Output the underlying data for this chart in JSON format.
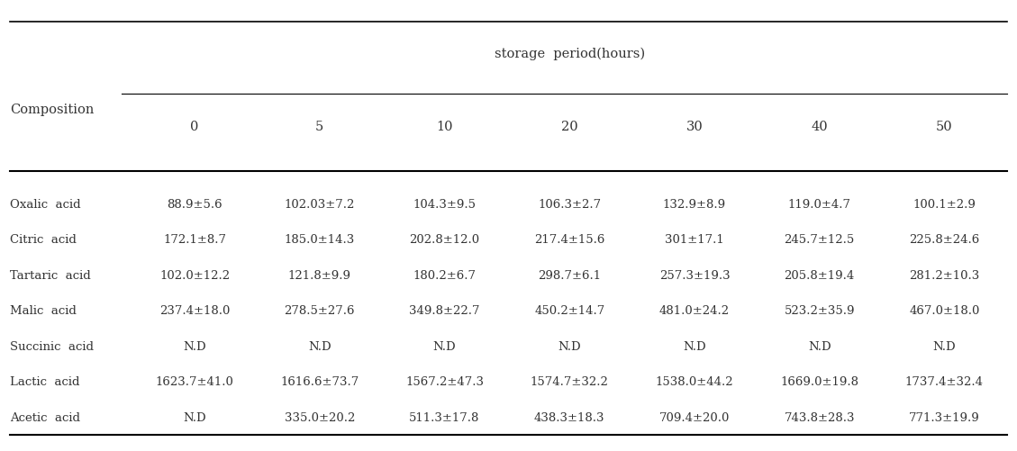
{
  "header_top": "storage  period(hours)",
  "col_header": "Composition",
  "columns": [
    "0",
    "5",
    "10",
    "20",
    "30",
    "40",
    "50"
  ],
  "rows": [
    {
      "name": "Oxalic  acid",
      "values": [
        "88.9±5.6",
        "102.03±7.2",
        "104.3±9.5",
        "106.3±2.7",
        "132.9±8.9",
        "119.0±4.7",
        "100.1±2.9"
      ]
    },
    {
      "name": "Citric  acid",
      "values": [
        "172.1±8.7",
        "185.0±14.3",
        "202.8±12.0",
        "217.4±15.6",
        "301±17.1",
        "245.7±12.5",
        "225.8±24.6"
      ]
    },
    {
      "name": "Tartaric  acid",
      "values": [
        "102.0±12.2",
        "121.8±9.9",
        "180.2±6.7",
        "298.7±6.1",
        "257.3±19.3",
        "205.8±19.4",
        "281.2±10.3"
      ]
    },
    {
      "name": "Malic  acid",
      "values": [
        "237.4±18.0",
        "278.5±27.6",
        "349.8±22.7",
        "450.2±14.7",
        "481.0±24.2",
        "523.2±35.9",
        "467.0±18.0"
      ]
    },
    {
      "name": "Succinic  acid",
      "values": [
        "N.D",
        "N.D",
        "N.D",
        "N.D",
        "N.D",
        "N.D",
        "N.D"
      ]
    },
    {
      "name": "Lactic  acid",
      "values": [
        "1623.7±41.0",
        "1616.6±73.7",
        "1567.2±47.3",
        "1574.7±32.2",
        "1538.0±44.2",
        "1669.0±19.8",
        "1737.4±32.4"
      ]
    },
    {
      "name": "Acetic  acid",
      "values": [
        "N.D",
        "335.0±20.2",
        "511.3±17.8",
        "438.3±18.3",
        "709.4±20.0",
        "743.8±28.3",
        "771.3±19.9"
      ]
    }
  ],
  "bg_color": "#ffffff",
  "text_color": "#333333",
  "font_size": 9.5,
  "header_font_size": 10.5
}
